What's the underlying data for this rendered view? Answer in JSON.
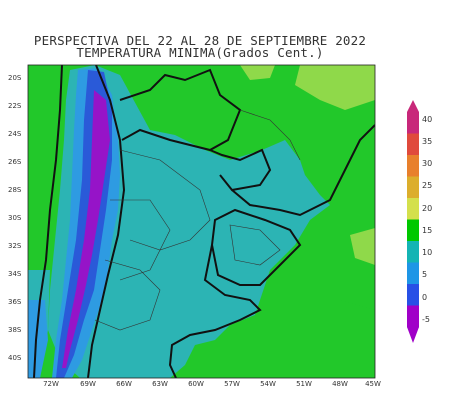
{
  "title": {
    "line1": "PERSPECTIVA DEL 22 AL 28 DE SEPTIEMBRE 2022",
    "line2": "TEMPERATURA MINIMA(Grados Cent.)"
  },
  "lat_labels": [
    "20S",
    "22S",
    "24S",
    "26S",
    "28S",
    "30S",
    "32S",
    "34S",
    "36S",
    "38S",
    "40S"
  ],
  "lon_labels": [
    "72W",
    "69W",
    "66W",
    "63W",
    "60W",
    "57W",
    "54W",
    "51W",
    "48W",
    "45W"
  ],
  "colorbar": {
    "ticks": [
      "40",
      "35",
      "30",
      "25",
      "20",
      "15",
      "10",
      "5",
      "0",
      "-5"
    ],
    "colors": [
      "#c8287a",
      "#e04a3c",
      "#e8802c",
      "#dcae2c",
      "#d4e04c",
      "#00c800",
      "#14b4b4",
      "#1e96e6",
      "#2850e6",
      "#a000c8"
    ]
  },
  "map_colors": {
    "green": "#22c82a",
    "light_green": "#8fd94a",
    "teal": "#2cb4b4",
    "blue": "#2e9be2",
    "dark_blue": "#2a5ad8",
    "purple": "#9614c8"
  }
}
